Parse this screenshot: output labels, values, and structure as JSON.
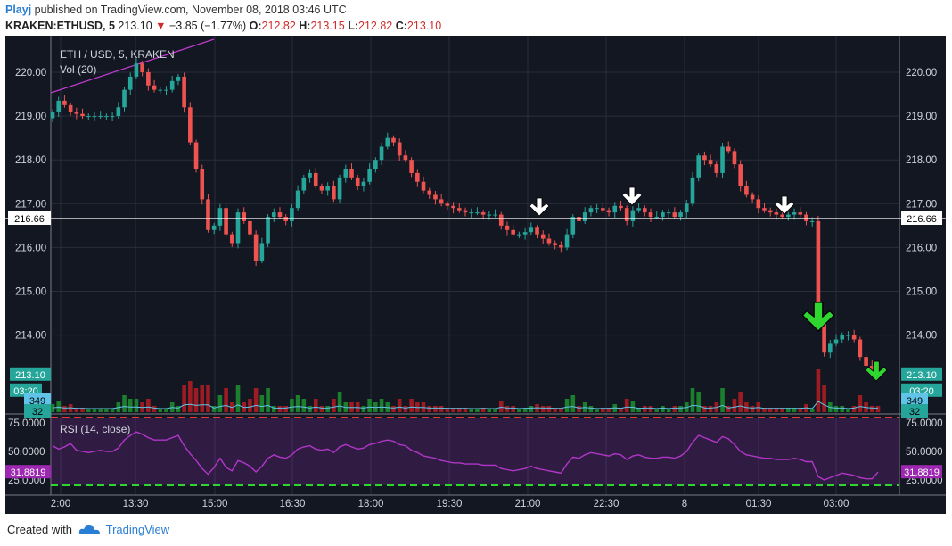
{
  "header": {
    "user": "Playj",
    "published": "published on TradingView.com, November 08, 2018 03:46 UTC",
    "symbol": "KRAKEN:ETHUSD, 5",
    "price": "213.10",
    "change_arrow": "▼",
    "change": "−3.85 (−1.77%)",
    "o_label": "O:",
    "o_value": "212.82",
    "h_label": "H:",
    "h_value": "213.15",
    "l_label": "L:",
    "l_value": "212.82",
    "c_label": "C:",
    "c_value": "213.10"
  },
  "legend": {
    "title": "ETH / USD, 5, KRAKEN",
    "volume": "Vol (20)",
    "rsi": "RSI (14, close)"
  },
  "footer": {
    "created": "Created with",
    "brand": "TradingView",
    "logo_icon": "tradingview-cloud-icon"
  },
  "colors": {
    "up": "#26a69a",
    "down": "#ef5350",
    "vol_up": "#1b7f2e",
    "vol_down": "#9d1c24",
    "rsi": "#9c27b0",
    "bg": "#131722",
    "hline": "#ffffff",
    "arrow_green": "#2fd62f",
    "arrow_white": "#ffffff"
  },
  "chart_data": {
    "type": "candlestick",
    "x_ticks": [
      "2:00",
      "13:30",
      "15:00",
      "16:30",
      "18:00",
      "19:30",
      "21:00",
      "22:30",
      "8",
      "01:30",
      "03:00"
    ],
    "y_ticks": [
      "220.00",
      "219.00",
      "218.00",
      "217.00",
      "216.00",
      "215.00",
      "214.00"
    ],
    "ylim": [
      213.5,
      220.2
    ],
    "horizontal_line": {
      "value": 216.66,
      "label": "216.66"
    },
    "price_label": "213.10",
    "countdown_label": "03:20",
    "volume_ma_label": "349",
    "volume_label": "32",
    "closes": [
      219.1,
      219.35,
      219.25,
      219.1,
      219.05,
      219.0,
      219.0,
      219.0,
      219.0,
      219.0,
      219.0,
      219.2,
      219.6,
      219.9,
      220.2,
      220.0,
      219.7,
      219.6,
      219.6,
      219.6,
      219.8,
      219.9,
      219.2,
      218.4,
      217.8,
      217.1,
      216.4,
      216.5,
      216.9,
      216.3,
      216.1,
      216.8,
      216.6,
      216.3,
      215.7,
      216.1,
      216.7,
      216.8,
      216.7,
      216.6,
      216.9,
      217.3,
      217.6,
      217.7,
      217.4,
      217.3,
      217.4,
      217.1,
      217.6,
      217.8,
      217.6,
      217.4,
      217.5,
      217.8,
      218.0,
      218.3,
      218.5,
      218.4,
      218.1,
      218.0,
      217.7,
      217.5,
      217.3,
      217.2,
      217.1,
      217.0,
      216.95,
      216.9,
      216.85,
      216.8,
      216.8,
      216.8,
      216.75,
      216.75,
      216.75,
      216.5,
      216.4,
      216.3,
      216.3,
      216.35,
      216.45,
      216.3,
      216.2,
      216.1,
      216.05,
      216.0,
      216.3,
      216.7,
      216.6,
      216.8,
      216.9,
      216.9,
      216.85,
      216.8,
      216.95,
      216.9,
      216.6,
      216.85,
      216.9,
      216.8,
      216.7,
      216.7,
      216.8,
      216.8,
      216.7,
      216.8,
      217.0,
      217.6,
      218.1,
      218.0,
      217.9,
      217.7,
      218.3,
      218.2,
      217.9,
      217.4,
      217.2,
      217.1,
      216.9,
      216.85,
      216.8,
      216.75,
      216.7,
      216.75,
      216.8,
      216.75,
      216.6,
      216.6,
      214.3,
      213.6,
      213.8,
      213.9,
      214.0,
      214.0,
      213.9,
      213.5,
      213.3,
      213.2,
      213.1
    ]
  },
  "rsi_data": {
    "ticks": [
      "75.0000",
      "50.0000",
      "25.0000"
    ],
    "ylim": [
      20,
      80
    ],
    "overbought": 70,
    "oversold": 30,
    "last_label": "31.8819",
    "values": [
      55,
      52,
      54,
      57,
      51,
      50,
      49,
      50,
      51,
      50,
      50,
      53,
      60,
      64,
      67,
      65,
      62,
      60,
      60,
      60,
      62,
      64,
      55,
      48,
      42,
      35,
      30,
      36,
      44,
      36,
      33,
      42,
      40,
      37,
      32,
      37,
      44,
      47,
      45,
      44,
      47,
      52,
      54,
      55,
      52,
      51,
      52,
      49,
      54,
      56,
      54,
      52,
      53,
      56,
      57,
      59,
      60,
      59,
      56,
      55,
      51,
      49,
      46,
      45,
      44,
      42,
      41,
      40,
      40,
      39,
      39,
      39,
      38,
      38,
      38,
      35,
      34,
      33,
      34,
      35,
      37,
      35,
      34,
      33,
      32,
      31,
      39,
      45,
      44,
      47,
      49,
      48,
      47,
      46,
      48,
      47,
      43,
      46,
      47,
      45,
      44,
      44,
      45,
      45,
      44,
      46,
      50,
      58,
      64,
      62,
      60,
      58,
      63,
      61,
      56,
      50,
      47,
      46,
      45,
      44,
      44,
      43,
      43,
      43,
      44,
      43,
      41,
      41,
      28,
      25,
      27,
      29,
      31,
      30,
      29,
      27,
      26,
      26,
      31.88
    ]
  }
}
